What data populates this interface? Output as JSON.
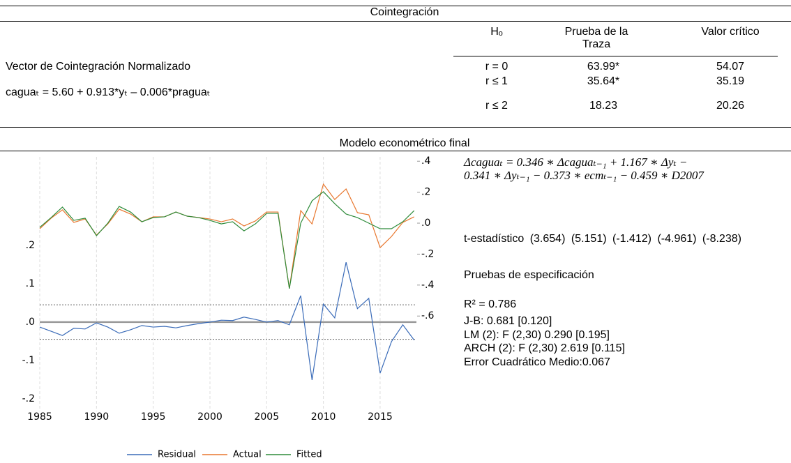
{
  "cointegration": {
    "title": "Cointegración",
    "headers": [
      "Hₒ",
      "Prueba de la Traza",
      "Valor crítico"
    ],
    "rows": [
      [
        "r = 0",
        "63.99*",
        "54.07"
      ],
      [
        "r ≤ 1",
        "35.64*",
        "35.19"
      ],
      [
        "r ≤ 2",
        "18.23",
        "20.26"
      ]
    ],
    "vector_label": "Vector de Cointegración Normalizado",
    "vector_equation": "caguaₜ = 5.60 + 0.913*yₜ – 0.006*praguaₜ"
  },
  "model": {
    "title": "Modelo econométrico final",
    "equation": [
      "Δcaguaₜ = 0.346 ∗ Δcaguaₜ₋₁ + 1.167 ∗ Δyₜ −",
      "0.341 ∗ Δyₜ₋₁ − 0.373 ∗ ecmₜ₋₁ − 0.459 ∗ D2007"
    ],
    "t_stats": "t-estadístico (3.654) (5.151) (-1.412) (-4.961) (-8.238)",
    "spec_title": "Pruebas de especificación",
    "tests": [
      "R² = 0.786",
      "J-B: 0.681 [0.120]",
      "LM (2): F (2,30) 0.290 [0.195]",
      "ARCH (2): F (2,30) 2.619 [0.115]",
      "Error Cuadrático Medio:0.067"
    ]
  },
  "figure": {
    "type": "line",
    "x": [
      1985,
      1986,
      1987,
      1988,
      1989,
      1990,
      1991,
      1992,
      1993,
      1994,
      1995,
      1996,
      1997,
      1998,
      1999,
      2000,
      2001,
      2002,
      2003,
      2004,
      2005,
      2006,
      2007,
      2008,
      2009,
      2010,
      2011,
      2012,
      2013,
      2014,
      2015,
      2016,
      2017,
      2018
    ],
    "xlim": [
      1985,
      2018.2
    ],
    "xticks": [
      1985,
      1990,
      1995,
      2000,
      2005,
      2010,
      2015
    ],
    "ylim": [
      -0.233,
      0.431
    ],
    "yticks": [
      {
        "value": 0.2,
        "label": ".2"
      },
      {
        "value": 0.1,
        "label": ".1"
      },
      {
        "value": 0,
        "label": ".0"
      },
      {
        "value": -0.1,
        "label": "-.1"
      },
      {
        "value": -0.2,
        "label": "-.2"
      }
    ],
    "y2lim": [
      -1.216,
      0.428
    ],
    "y2ticks": [
      {
        "value": 0.4,
        "label": ".4"
      },
      {
        "value": 0.2,
        "label": ".2"
      },
      {
        "value": 0,
        "label": ".0"
      },
      {
        "value": -0.2,
        "label": "-.2"
      },
      {
        "value": -0.4,
        "label": "-.4"
      },
      {
        "value": -0.6,
        "label": "-.6"
      }
    ],
    "se_band": 0.045,
    "grid": true,
    "series": [
      {
        "name": "Residual",
        "color": "#3a6bb8",
        "values": [
          -0.013,
          -0.024,
          -0.035,
          -0.016,
          -0.018,
          -0.002,
          -0.013,
          -0.029,
          -0.02,
          -0.009,
          -0.013,
          -0.011,
          -0.015,
          -0.009,
          -0.004,
          0,
          0.005,
          0.004,
          0.013,
          0.007,
          0,
          0.004,
          -0.007,
          0.069,
          -0.151,
          0.047,
          0.011,
          0.156,
          0.035,
          0.062,
          -0.133,
          -0.051,
          -0.007,
          -0.047
        ]
      },
      {
        "name": "Actual",
        "color": "#e8772e",
        "axis": "y2",
        "values": [
          -0.036,
          0.032,
          0.086,
          0.005,
          0.027,
          -0.077,
          -0.005,
          0.09,
          0.059,
          0.009,
          0.041,
          0.041,
          0.072,
          0.045,
          0.036,
          0.027,
          0.009,
          0.027,
          -0.018,
          0.014,
          0.072,
          0.072,
          -0.423,
          0.081,
          -0.005,
          0.252,
          0.153,
          0.221,
          0.068,
          0.054,
          -0.158,
          -0.086,
          0.005,
          0.041
        ]
      },
      {
        "name": "Fitted",
        "color": "#2e8b3a",
        "axis": "y2",
        "values": [
          -0.027,
          0.036,
          0.104,
          0.018,
          0.032,
          -0.081,
          0,
          0.108,
          0.072,
          0.009,
          0.036,
          0.041,
          0.072,
          0.045,
          0.036,
          0.018,
          -0.005,
          0.009,
          -0.05,
          -0.005,
          0.063,
          0.063,
          -0.423,
          0,
          0.144,
          0.203,
          0.126,
          0.059,
          0.036,
          0,
          -0.036,
          -0.036,
          0.009,
          0.081
        ]
      }
    ]
  }
}
